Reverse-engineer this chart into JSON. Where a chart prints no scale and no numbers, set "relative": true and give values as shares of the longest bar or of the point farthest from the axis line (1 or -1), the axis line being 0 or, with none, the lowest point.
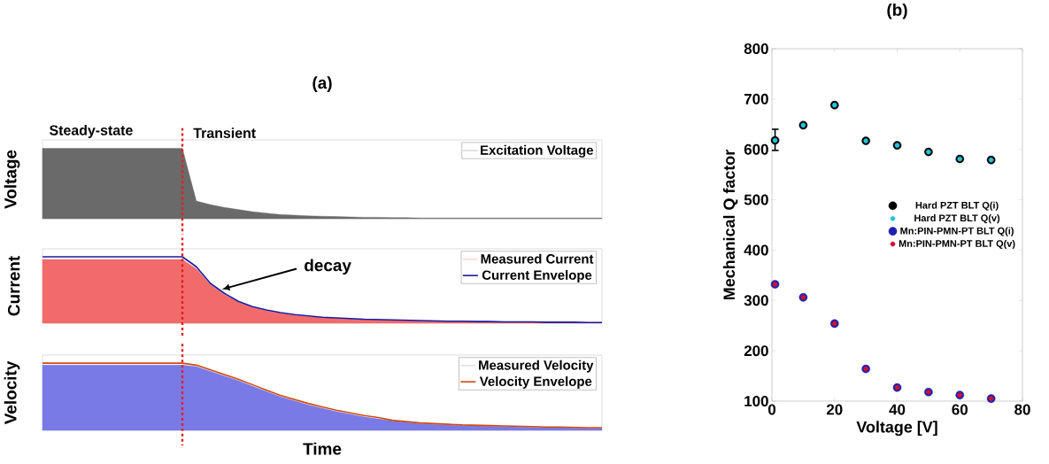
{
  "chart_data": [
    {
      "type": "area",
      "title": "(a)",
      "ylabel": "Voltage",
      "relative": true,
      "legend": "top right",
      "annotations": [
        "Steady-state",
        "Transient"
      ],
      "categories": [
        null,
        null,
        null,
        null,
        null,
        null,
        null,
        null,
        null,
        null,
        null,
        null,
        null,
        null,
        null,
        null,
        null,
        null,
        null,
        null,
        null,
        null,
        null,
        null,
        null,
        null,
        null,
        null,
        null,
        null,
        null,
        null,
        null,
        null,
        null,
        null,
        null,
        null,
        null,
        null,
        null
      ],
      "series": [
        {
          "name": "Excitation Voltage",
          "color": "#6a6a6a",
          "values": [
            1,
            1,
            1,
            1,
            1,
            1,
            1,
            1,
            1,
            1,
            1,
            0.25,
            0.2,
            0.16,
            0.13,
            0.1,
            0.08,
            0.06,
            0.05,
            0.04,
            0.035,
            0.03,
            0.025,
            0.02,
            0.02,
            0.015,
            0.015,
            0.01,
            0.01,
            0.01,
            0.01,
            0.01,
            0.01,
            0.01,
            0.01,
            0.01,
            0.01,
            0.01,
            0.01,
            0.01,
            0.01
          ]
        }
      ]
    },
    {
      "type": "area",
      "ylabel": "Current",
      "relative": true,
      "legend": "top right",
      "annotations": [
        "decay"
      ],
      "categories": [
        null,
        null,
        null,
        null,
        null,
        null,
        null,
        null,
        null,
        null,
        null,
        null,
        null,
        null,
        null,
        null,
        null,
        null,
        null,
        null,
        null,
        null,
        null,
        null,
        null,
        null,
        null,
        null,
        null,
        null,
        null,
        null,
        null,
        null,
        null,
        null,
        null,
        null,
        null,
        null,
        null
      ],
      "series": [
        {
          "name": "Measured Current",
          "color": "#f26b6b",
          "values": [
            0.96,
            0.96,
            0.96,
            0.96,
            0.96,
            0.96,
            0.96,
            0.96,
            0.96,
            0.96,
            0.96,
            0.82,
            0.58,
            0.43,
            0.32,
            0.24,
            0.19,
            0.15,
            0.12,
            0.1,
            0.085,
            0.075,
            0.065,
            0.055,
            0.05,
            0.045,
            0.04,
            0.035,
            0.03,
            0.03,
            0.025,
            0.025,
            0.02,
            0.02,
            0.02,
            0.015,
            0.015,
            0.01,
            0.01,
            0.01,
            0.01
          ]
        },
        {
          "name": "Current Envelope",
          "type": "line",
          "color": "#1a1aa0",
          "values": [
            1,
            1,
            1,
            1,
            1,
            1,
            1,
            1,
            1,
            1,
            1,
            0.85,
            0.6,
            0.45,
            0.33,
            0.25,
            0.2,
            0.16,
            0.13,
            0.11,
            0.09,
            0.08,
            0.07,
            0.06,
            0.055,
            0.05,
            0.045,
            0.04,
            0.035,
            0.03,
            0.03,
            0.025,
            0.025,
            0.02,
            0.02,
            0.02,
            0.015,
            0.015,
            0.015,
            0.01,
            0.01
          ]
        }
      ]
    },
    {
      "type": "area",
      "ylabel": "Velocity",
      "xlabel": "Time",
      "relative": true,
      "legend": "top right",
      "categories": [
        null,
        null,
        null,
        null,
        null,
        null,
        null,
        null,
        null,
        null,
        null,
        null,
        null,
        null,
        null,
        null,
        null,
        null,
        null,
        null,
        null,
        null,
        null,
        null,
        null,
        null,
        null,
        null,
        null,
        null,
        null,
        null,
        null,
        null,
        null,
        null,
        null,
        null,
        null,
        null,
        null
      ],
      "series": [
        {
          "name": "Measured Velocity",
          "color": "#7a7ae6",
          "values": [
            0.97,
            0.97,
            0.97,
            0.97,
            0.97,
            0.97,
            0.97,
            0.97,
            0.97,
            0.97,
            0.97,
            0.95,
            0.88,
            0.81,
            0.74,
            0.66,
            0.58,
            0.5,
            0.44,
            0.38,
            0.33,
            0.28,
            0.24,
            0.2,
            0.17,
            0.14,
            0.12,
            0.1,
            0.09,
            0.08,
            0.07,
            0.065,
            0.06,
            0.055,
            0.05,
            0.045,
            0.04,
            0.04,
            0.035,
            0.03,
            0.03
          ]
        },
        {
          "name": "Velocity Envelope",
          "type": "line",
          "color": "#d04a10",
          "values": [
            1,
            1,
            1,
            1,
            1,
            1,
            1,
            1,
            1,
            1,
            1,
            0.97,
            0.9,
            0.83,
            0.76,
            0.68,
            0.6,
            0.52,
            0.46,
            0.4,
            0.35,
            0.3,
            0.26,
            0.22,
            0.19,
            0.15,
            0.13,
            0.11,
            0.1,
            0.09,
            0.08,
            0.075,
            0.07,
            0.065,
            0.06,
            0.055,
            0.05,
            0.05,
            0.045,
            0.04,
            0.04
          ]
        }
      ]
    },
    {
      "type": "scatter",
      "title": "(b)",
      "xlabel": "Voltage [V]",
      "ylabel": "Mechanical Q factor",
      "legend": "right",
      "x": [
        1,
        10,
        20,
        30,
        40,
        50,
        60,
        70
      ],
      "xlim": [
        0,
        80
      ],
      "xticks": [
        0,
        20,
        40,
        60,
        80
      ],
      "ylim": [
        100,
        800
      ],
      "yticks": [
        100,
        200,
        300,
        400,
        500,
        600,
        700,
        800
      ],
      "series": [
        {
          "name": "Hard PZT BLT Q(i)",
          "color": "#000000",
          "values": [
            618,
            648,
            688,
            617,
            608,
            595,
            581,
            579
          ],
          "errors": [
            [
              598,
              640
            ],
            null,
            null,
            null,
            null,
            null,
            null,
            null
          ]
        },
        {
          "name": "Hard PZT BLT Q(v)",
          "color": "#22c4dc",
          "values": [
            618,
            648,
            688,
            617,
            608,
            595,
            581,
            579
          ]
        },
        {
          "name": "Mn:PIN-PMN-PT BLT Q(i)",
          "color": "#2020b0",
          "values": [
            332,
            306,
            254,
            164,
            127,
            118,
            112,
            105
          ]
        },
        {
          "name": "Mn:PIN-PMN-PT BLT Q(v)",
          "color": "#d01030",
          "values": [
            332,
            306,
            254,
            164,
            127,
            118,
            112,
            105
          ]
        }
      ]
    }
  ]
}
